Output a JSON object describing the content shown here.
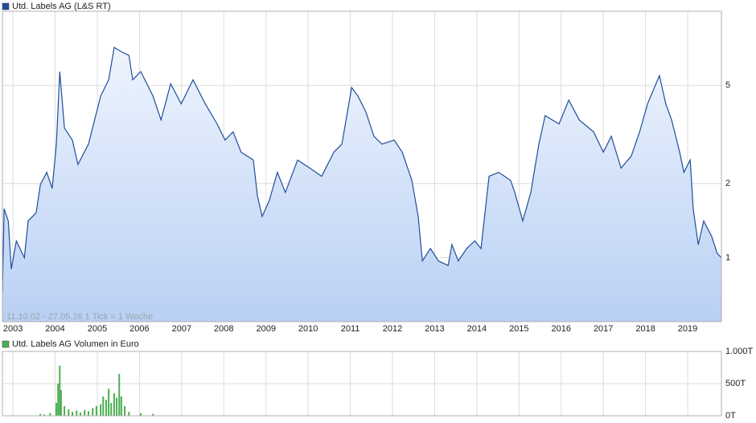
{
  "chart_data": [
    {
      "type": "line",
      "annotation": "11.10.02 - 27.05.26   1 Tick = 1 Woche",
      "watermark": "ARIVA.DE",
      "log_scale": true,
      "grid": true,
      "x": [
        2002.75,
        2002.79,
        2002.89,
        2002.96,
        2003.08,
        2003.27,
        2003.36,
        2003.55,
        2003.65,
        2003.8,
        2003.93,
        2004.03,
        2004.11,
        2004.22,
        2004.41,
        2004.54,
        2004.79,
        2005.08,
        2005.27,
        2005.4,
        2005.56,
        2005.75,
        2005.84,
        2006.03,
        2006.32,
        2006.51,
        2006.74,
        2006.99,
        2007.27,
        2007.56,
        2007.84,
        2008.03,
        2008.22,
        2008.41,
        2008.7,
        2008.8,
        2008.91,
        2009.08,
        2009.27,
        2009.46,
        2009.75,
        2010.04,
        2010.32,
        2010.61,
        2010.8,
        2011.03,
        2011.18,
        2011.37,
        2011.56,
        2011.75,
        2012.04,
        2012.23,
        2012.46,
        2012.61,
        2012.71,
        2012.9,
        2013.09,
        2013.32,
        2013.41,
        2013.56,
        2013.76,
        2013.95,
        2014.1,
        2014.29,
        2014.52,
        2014.8,
        2014.9,
        2015.09,
        2015.28,
        2015.47,
        2015.62,
        2015.95,
        2016.18,
        2016.43,
        2016.77,
        2017.0,
        2017.19,
        2017.42,
        2017.66,
        2017.86,
        2018.05,
        2018.33,
        2018.48,
        2018.62,
        2018.81,
        2018.91,
        2019.06,
        2019.13,
        2019.25,
        2019.38,
        2019.57,
        2019.7,
        2019.8
      ],
      "series": [
        {
          "name": "Utd. Labels AG (L&S RT)",
          "color": "#1f4e9c",
          "values": [
            0.72,
            1.58,
            1.41,
            0.9,
            1.17,
            1.0,
            1.41,
            1.52,
            1.98,
            2.22,
            1.91,
            2.89,
            5.69,
            3.36,
            3.0,
            2.39,
            2.89,
            4.53,
            5.27,
            7.13,
            6.87,
            6.62,
            5.27,
            5.69,
            4.53,
            3.62,
            5.08,
            4.21,
            5.27,
            4.21,
            3.49,
            3.0,
            3.24,
            2.68,
            2.49,
            1.77,
            1.47,
            1.71,
            2.22,
            1.84,
            2.49,
            2.31,
            2.14,
            2.68,
            2.89,
            4.9,
            4.53,
            3.9,
            3.11,
            2.89,
            3.0,
            2.68,
            2.06,
            1.47,
            0.97,
            1.09,
            0.97,
            0.93,
            1.13,
            0.97,
            1.09,
            1.17,
            1.09,
            2.14,
            2.22,
            2.06,
            1.84,
            1.41,
            1.84,
            2.89,
            3.77,
            3.49,
            4.36,
            3.62,
            3.24,
            2.68,
            3.11,
            2.31,
            2.58,
            3.24,
            4.21,
            5.48,
            4.21,
            3.62,
            2.68,
            2.22,
            2.49,
            1.58,
            1.13,
            1.41,
            1.22,
            1.04,
            1.0
          ]
        }
      ],
      "xlim": [
        2002.75,
        2019.8
      ],
      "xticks": [
        2003,
        2004,
        2005,
        2006,
        2007,
        2008,
        2009,
        2010,
        2011,
        2012,
        2013,
        2014,
        2015,
        2016,
        2017,
        2018,
        2019
      ],
      "ylim": [
        0.55,
        10
      ],
      "yticks": [
        1,
        2,
        5
      ]
    },
    {
      "type": "bar",
      "grid": true,
      "x": [
        2003.65,
        2003.74,
        2003.88,
        2004.03,
        2004.07,
        2004.11,
        2004.14,
        2004.22,
        2004.32,
        2004.41,
        2004.51,
        2004.6,
        2004.7,
        2004.79,
        2004.89,
        2004.98,
        2005.08,
        2005.14,
        2005.21,
        2005.27,
        2005.33,
        2005.4,
        2005.46,
        2005.52,
        2005.57,
        2005.65,
        2005.75,
        2006.03,
        2006.32
      ],
      "series": [
        {
          "name": "Utd. Labels AG Volumen in Euro",
          "color": "#4caf50",
          "values": [
            30,
            20,
            40,
            200,
            500,
            780,
            400,
            150,
            100,
            60,
            80,
            50,
            90,
            70,
            120,
            150,
            180,
            300,
            250,
            420,
            200,
            350,
            280,
            650,
            300,
            150,
            60,
            40,
            30
          ]
        }
      ],
      "xlim": [
        2002.75,
        2019.8
      ],
      "ylim": [
        0,
        1000
      ],
      "yticks": [
        {
          "value": 0,
          "label": "0T"
        },
        {
          "value": 500,
          "label": "500T"
        },
        {
          "value": 1000,
          "label": "1.000T"
        }
      ]
    }
  ]
}
